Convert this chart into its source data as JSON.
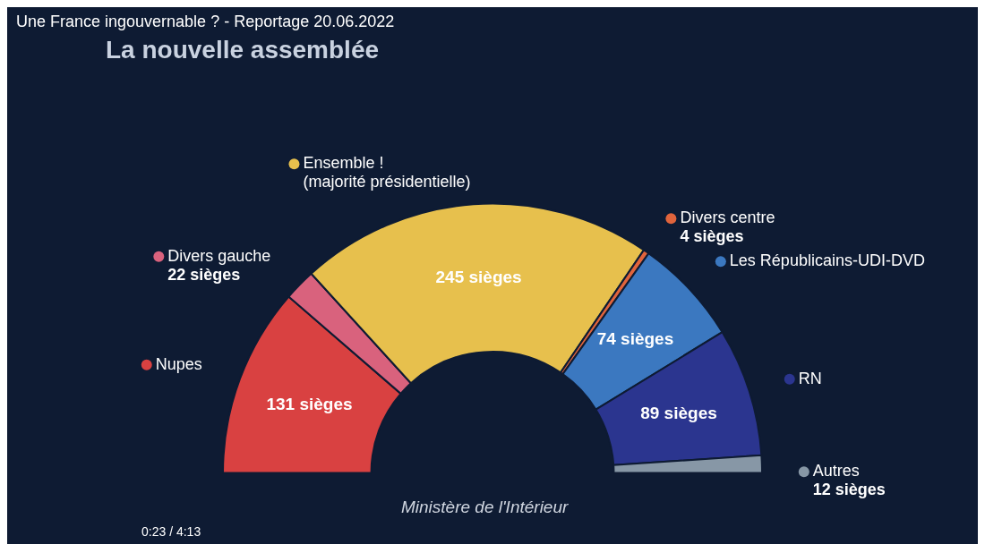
{
  "chart_data": {
    "type": "donut",
    "title": "La nouvelle assemblée",
    "subtitle": "Une France ingouvernable ? - Reportage 20.06.2022",
    "categories": [
      "Nupes",
      "Divers gauche",
      "Ensemble ! (majorité présidentielle)",
      "Divers centre",
      "Les Républicains-UDI-DVD",
      "RN",
      "Autres"
    ],
    "values": [
      131,
      22,
      245,
      4,
      74,
      89,
      12
    ],
    "colors": [
      "#d94141",
      "#d9627d",
      "#e7c04d",
      "#e0643c",
      "#3b78c0",
      "#2b358f",
      "#8797a6"
    ],
    "value_labels": [
      "131 sièges",
      "22 sièges",
      "245 sièges",
      "4 sièges",
      "74 sièges",
      "89 sièges",
      "12 sièges"
    ],
    "annotations": [
      "Ministère de l'Intérieur",
      "0:23 / 4:13"
    ],
    "legend": "top"
  }
}
